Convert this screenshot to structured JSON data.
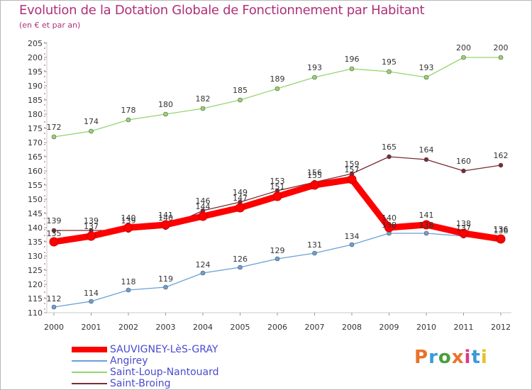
{
  "title": "Evolution de la Dotation Globale de Fonctionnement par Habitant",
  "subtitle": "(en € et par an)",
  "logo": {
    "text": "Proxiti",
    "colors": [
      "#e8732a",
      "#3a9ad9",
      "#4aa03a",
      "#e8732a",
      "#d93a8a",
      "#3a9ad9",
      "#e8c02a"
    ]
  },
  "chart_data": {
    "type": "line",
    "title": "Evolution de la Dotation Globale de Fonctionnement par Habitant",
    "subtitle": "(en € et par an)",
    "x": [
      "2000",
      "2001",
      "2002",
      "2003",
      "2004",
      "2005",
      "2006",
      "2007",
      "2008",
      "2009",
      "2010",
      "2011",
      "2012"
    ],
    "ylim": [
      110,
      205
    ],
    "yticks": [
      110,
      115,
      120,
      125,
      130,
      135,
      140,
      145,
      150,
      155,
      160,
      165,
      170,
      175,
      180,
      185,
      190,
      195,
      200,
      205
    ],
    "grid": false,
    "legend_position": "bottom-left",
    "series": [
      {
        "name": "SAUVIGNEY-LèS-GRAY",
        "color": "#ff0000",
        "values": [
          135,
          137,
          140,
          141,
          144,
          147,
          151,
          155,
          157,
          140,
          141,
          138,
          136
        ]
      },
      {
        "name": "Angirey",
        "color": "#6aa0d8",
        "values": [
          112,
          114,
          118,
          119,
          124,
          126,
          129,
          131,
          134,
          138,
          138,
          137,
          136
        ]
      },
      {
        "name": "Saint-Loup-Nantouard",
        "color": "#96d470",
        "values": [
          172,
          174,
          178,
          180,
          182,
          185,
          189,
          193,
          196,
          195,
          193,
          200,
          200
        ]
      },
      {
        "name": "Saint-Broing",
        "color": "#7a2c34",
        "values": [
          139,
          139,
          139,
          140,
          146,
          149,
          153,
          156,
          159,
          165,
          164,
          160,
          162
        ]
      }
    ]
  }
}
